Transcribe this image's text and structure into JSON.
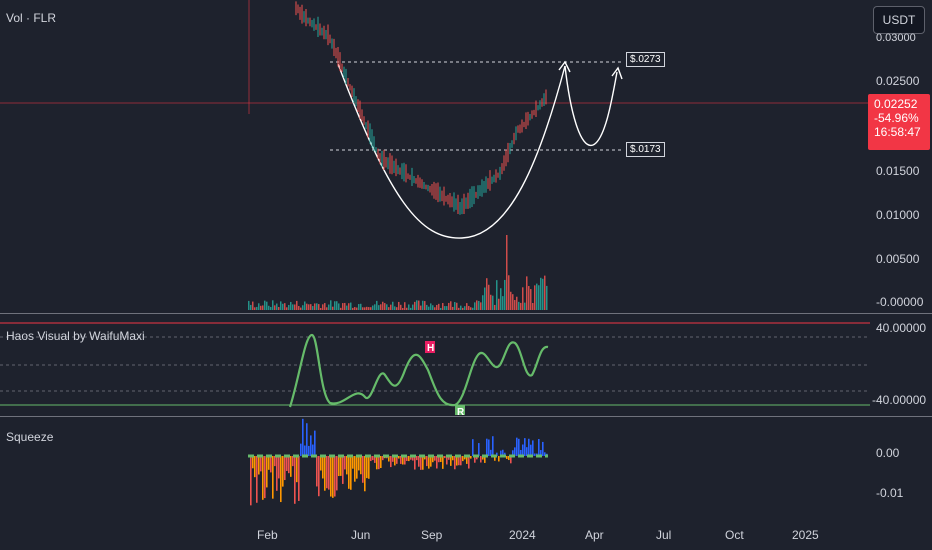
{
  "main": {
    "title": "Vol · FLR",
    "price_scale": [
      "0.03000",
      "0.02500",
      "0.01500",
      "0.01000",
      "0.00500",
      "-0.00000"
    ],
    "quote_button": "USDT",
    "current_price": "0.02252",
    "change_pct": "-54.96%",
    "countdown": "16:58:47",
    "target_upper": "$.0273",
    "target_lower": "$.0173"
  },
  "haos": {
    "title": "Haos Visual by WaifuMaxi",
    "scale": [
      "40.00000",
      "-40.00000"
    ],
    "markers": [
      "H",
      "R"
    ]
  },
  "squeeze": {
    "title": "Squeeze",
    "scale": [
      "0.00",
      "-0.01"
    ]
  },
  "time_axis": [
    "Feb",
    "Jun",
    "Sep",
    "2024",
    "Apr",
    "Jul",
    "Oct",
    "2025"
  ],
  "colors": {
    "background": "#1e222d",
    "up": "#26a69a",
    "down": "#ef5350",
    "price_line": "#f23645",
    "haos_green": "#66bb6a",
    "haos_red": "#e91e63",
    "squeeze_blue": "#2962ff",
    "annotation": "#ffffff"
  }
}
